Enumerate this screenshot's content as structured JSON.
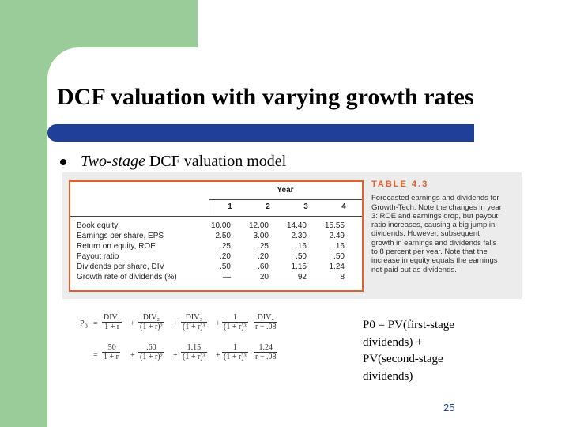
{
  "slide": {
    "title": "DCF valuation with varying growth rates",
    "bullet": {
      "italic": "Two-stage",
      "text": " DCF valuation model"
    },
    "page_number": "25"
  },
  "table": {
    "header": {
      "year": "Year",
      "columns": [
        "1",
        "2",
        "3",
        "4"
      ]
    },
    "rows": [
      {
        "label": "Book equity",
        "values": [
          "10.00",
          "12.00",
          "14.40",
          "15.55"
        ]
      },
      {
        "label": "Earnings per share, EPS",
        "values": [
          "2.50",
          "3.00",
          "2.30",
          "2.49"
        ]
      },
      {
        "label": "Return on equity, ROE",
        "values": [
          ".25",
          ".25",
          ".16",
          ".16"
        ]
      },
      {
        "label": "Payout ratio",
        "values": [
          ".20",
          ".20",
          ".50",
          ".50"
        ]
      },
      {
        "label": "Dividends per share, DIV",
        "values": [
          ".50",
          ".60",
          "1.15",
          "1.24"
        ]
      },
      {
        "label": "Growth rate of dividends (%)",
        "values": [
          "—",
          "20",
          "92",
          "8"
        ]
      }
    ],
    "caption_title": "TABLE 4.3",
    "caption_lines": [
      "Forecasted earnings and dividends for",
      "Growth-Tech. Note the changes in year",
      "3: ROE and earnings drop, but payout",
      "ratio increases, causing a big jump in",
      "dividends. However, subsequent",
      "growth in earnings and dividends falls",
      "to 8 percent per year. Note that the",
      "increase in equity equals the earnings",
      "not paid out as dividends."
    ]
  },
  "formula": {
    "p0": "P",
    "p0_sub": "0",
    "eq": "=",
    "plus": "+",
    "term1_num": "DIV₁",
    "term1_den": "1 + r",
    "term2_num": "DIV₂",
    "term2_den": "(1 + r)²",
    "term3_num": "DIV₃",
    "term3_den": "(1 + r)³",
    "term4_num": "1",
    "term4_den": "(1 + r)³",
    "term5_num": "DIV₄",
    "term5_den": "r − .08",
    "row2_t1_num": ".50",
    "row2_t1_den": "1 + r",
    "row2_t2_num": ".60",
    "row2_t2_den": "(1 + r)²",
    "row2_t3_num": "1.15",
    "row2_t3_den": "(1 + r)³",
    "row2_t4_num": "1",
    "row2_t4_den": "(1 + r)³",
    "row2_t5_num": "1.24",
    "row2_t5_den": "r − .08"
  },
  "right_text": [
    "P0 = PV(first-stage",
    "dividends) +",
    "PV(second-stage",
    "dividends)"
  ],
  "colors": {
    "green": "#99cc99",
    "title_bar": "#1f3f99",
    "table_border": "#e06030"
  }
}
